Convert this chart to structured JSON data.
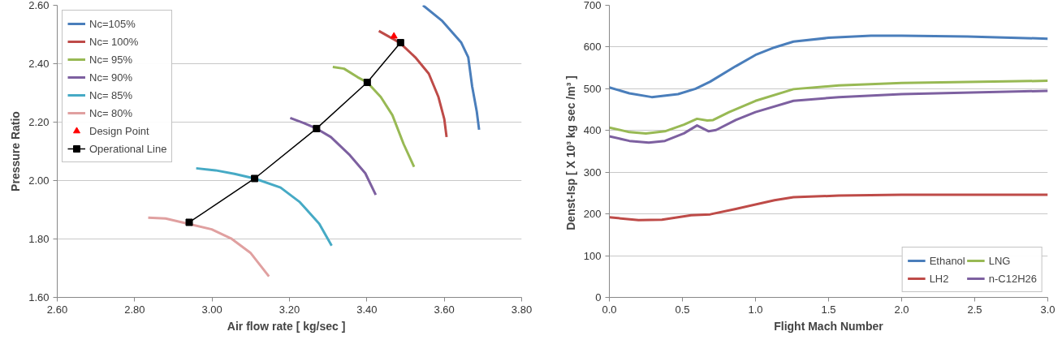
{
  "chart_data": [
    {
      "type": "line",
      "xlabel": "Air flow rate   [ kg/sec ]",
      "ylabel": "Pressure Ratio",
      "xlim": [
        2.6,
        3.8
      ],
      "ylim": [
        1.6,
        2.6
      ],
      "xticks": [
        {
          "value": 2.6,
          "label": "2.60"
        },
        {
          "value": 2.8,
          "label": "2.80"
        },
        {
          "value": 3.0,
          "label": "3.00"
        },
        {
          "value": 3.2,
          "label": "3.20"
        },
        {
          "value": 3.4,
          "label": "3.40"
        },
        {
          "value": 3.6,
          "label": "3.60"
        },
        {
          "value": 3.8,
          "label": "3.80"
        }
      ],
      "yticks": [
        {
          "value": 1.6,
          "label": "1.60"
        },
        {
          "value": 1.8,
          "label": "1.80"
        },
        {
          "value": 2.0,
          "label": "2.00"
        },
        {
          "value": 2.2,
          "label": "2.20"
        },
        {
          "value": 2.4,
          "label": "2.40"
        },
        {
          "value": 2.6,
          "label": "2.60"
        }
      ],
      "grid": "y",
      "legend": "top left",
      "series": [
        {
          "name": "Nc=105%",
          "color": "#4a7ebb",
          "x": [
            3.545,
            3.595,
            3.644,
            3.662,
            3.672,
            3.684,
            3.69
          ],
          "values": [
            2.6,
            2.546,
            2.472,
            2.422,
            2.323,
            2.236,
            2.174
          ]
        },
        {
          "name": "Nc= 100%",
          "color": "#be4b48",
          "x": [
            3.431,
            3.485,
            3.525,
            3.56,
            3.585,
            3.6,
            3.606
          ],
          "values": [
            2.512,
            2.472,
            2.422,
            2.366,
            2.286,
            2.211,
            2.149
          ]
        },
        {
          "name": "Nc= 95%",
          "color": "#98b954",
          "x": [
            3.312,
            3.341,
            3.376,
            3.401,
            3.436,
            3.466,
            3.495,
            3.522
          ],
          "values": [
            2.389,
            2.383,
            2.354,
            2.336,
            2.286,
            2.224,
            2.125,
            2.047
          ]
        },
        {
          "name": "Nc= 90%",
          "color": "#7d60a0",
          "x": [
            3.202,
            3.237,
            3.27,
            3.307,
            3.356,
            3.396,
            3.423
          ],
          "values": [
            2.214,
            2.197,
            2.178,
            2.149,
            2.087,
            2.025,
            1.951
          ]
        },
        {
          "name": "Nc= 85%",
          "color": "#46aac5",
          "x": [
            2.959,
            3.009,
            3.058,
            3.11,
            3.177,
            3.227,
            3.277,
            3.309
          ],
          "values": [
            2.042,
            2.035,
            2.023,
            2.007,
            1.976,
            1.926,
            1.852,
            1.777
          ]
        },
        {
          "name": "Nc= 80%",
          "color": "#e0a0a0",
          "x": [
            2.835,
            2.88,
            2.999,
            3.049,
            3.099,
            3.147
          ],
          "values": [
            1.873,
            1.87,
            1.833,
            1.802,
            1.753,
            1.672
          ]
        },
        {
          "name": "Design Point",
          "type": "scatter",
          "marker": "triangle",
          "color": "#ff0000",
          "x": [
            3.47
          ],
          "values": [
            2.494
          ]
        },
        {
          "name": "Operational Line",
          "marker": "square",
          "color": "#000000",
          "x": [
            2.941,
            3.11,
            3.27,
            3.401,
            3.487
          ],
          "values": [
            1.857,
            2.007,
            2.178,
            2.336,
            2.472
          ]
        }
      ]
    },
    {
      "type": "line",
      "xlabel": "Flight Mach Number",
      "ylabel": "Denst-Isp  [ X 10³ kg sec /m³ ]",
      "xlim": [
        0,
        3
      ],
      "ylim": [
        0,
        700
      ],
      "xticks": [
        {
          "value": 0,
          "label": "0.0"
        },
        {
          "value": 0.5,
          "label": "0.5"
        },
        {
          "value": 1,
          "label": "1.0"
        },
        {
          "value": 1.5,
          "label": "1.5"
        },
        {
          "value": 2,
          "label": "2.0"
        },
        {
          "value": 2.5,
          "label": "2.5"
        },
        {
          "value": 3,
          "label": "3.0"
        }
      ],
      "yticks": [
        0,
        100,
        200,
        300,
        400,
        500,
        600,
        700
      ],
      "grid": "y",
      "legend": "bottom right",
      "series": [
        {
          "name": "Ethanol",
          "color": "#4a7ebb",
          "x": [
            0,
            0.137,
            0.29,
            0.47,
            0.59,
            0.69,
            0.865,
            1.0,
            1.13,
            1.26,
            1.5,
            1.79,
            2.0,
            2.45,
            3.0
          ],
          "values": [
            503,
            489,
            480,
            487,
            500,
            517,
            554,
            581,
            599,
            613,
            622,
            627,
            627,
            625,
            620
          ]
        },
        {
          "name": "LH2",
          "color": "#be4b48",
          "x": [
            0,
            0.2,
            0.36,
            0.56,
            0.69,
            0.865,
            1.13,
            1.26,
            1.57,
            2.0,
            3.0
          ],
          "values": [
            192,
            185,
            186,
            197,
            199,
            212,
            233,
            240,
            244,
            246,
            246
          ]
        },
        {
          "name": "LNG",
          "color": "#98b954",
          "x": [
            0,
            0.137,
            0.25,
            0.38,
            0.51,
            0.6,
            0.67,
            0.71,
            0.82,
            1.0,
            1.26,
            1.57,
            2.0,
            3.0
          ],
          "values": [
            407,
            396,
            393,
            398,
            414,
            428,
            424,
            425,
            444,
            471,
            499,
            508,
            514,
            519
          ]
        },
        {
          "name": "n-C12H26",
          "color": "#7d60a0",
          "x": [
            0,
            0.137,
            0.27,
            0.38,
            0.51,
            0.6,
            0.68,
            0.73,
            0.865,
            1.0,
            1.26,
            1.57,
            2.0,
            3.0
          ],
          "values": [
            386,
            375,
            371,
            375,
            393,
            412,
            398,
            401,
            425,
            444,
            471,
            480,
            487,
            495
          ]
        }
      ]
    }
  ]
}
